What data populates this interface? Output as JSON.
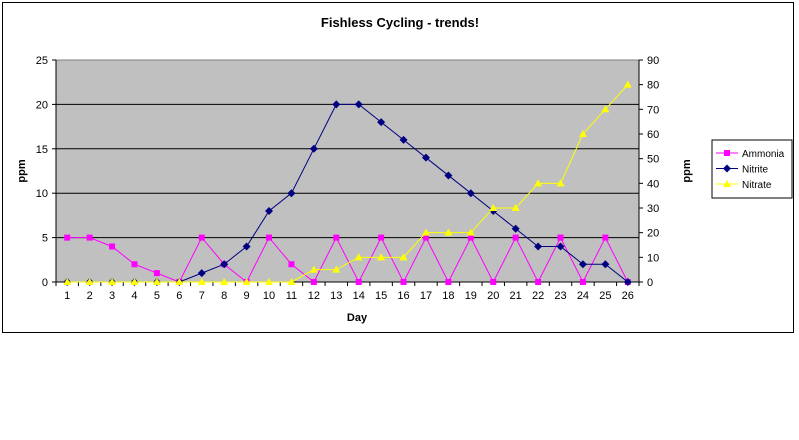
{
  "chart_data": {
    "type": "line",
    "title": "Fishless Cycling - trends!",
    "xlabel": "Day",
    "ylabel": "ppm",
    "y2label": "ppm",
    "ylim": [
      0,
      25
    ],
    "y2lim": [
      0,
      90
    ],
    "yticks": [
      "0",
      "5",
      "10",
      "15",
      "20",
      "25"
    ],
    "y2ticks": [
      "0",
      "10",
      "20",
      "30",
      "40",
      "50",
      "60",
      "70",
      "80",
      "90"
    ],
    "categories": [
      "1",
      "2",
      "3",
      "4",
      "5",
      "6",
      "7",
      "8",
      "9",
      "10",
      "11",
      "12",
      "13",
      "14",
      "15",
      "16",
      "17",
      "18",
      "19",
      "20",
      "21",
      "22",
      "23",
      "24",
      "25",
      "26"
    ],
    "grid": true,
    "legend_position": "right",
    "plot_background": "#c0c0c0",
    "series": [
      {
        "name": "Ammonia",
        "axis": "left",
        "color": "#ff00ff",
        "marker": "square",
        "values": [
          5,
          5,
          4,
          2,
          1,
          0,
          5,
          2,
          0,
          5,
          2,
          0,
          5,
          0,
          5,
          0,
          5,
          0,
          5,
          0,
          5,
          0,
          5,
          0,
          5,
          0
        ]
      },
      {
        "name": "Nitrite",
        "axis": "left",
        "color": "#000080",
        "marker": "diamond",
        "values": [
          0,
          0,
          0,
          0,
          0,
          0,
          1,
          2,
          4,
          8,
          10,
          15,
          20,
          20,
          18,
          16,
          14,
          12,
          10,
          8,
          6,
          4,
          4,
          2,
          2,
          0
        ]
      },
      {
        "name": "Nitrate",
        "axis": "right",
        "color": "#ffff00",
        "marker": "triangle",
        "values": [
          0,
          0,
          0,
          0,
          0,
          0,
          0,
          0,
          0,
          0,
          0,
          5,
          5,
          10,
          10,
          10,
          20,
          20,
          20,
          30,
          30,
          40,
          40,
          60,
          70,
          80
        ]
      }
    ]
  }
}
